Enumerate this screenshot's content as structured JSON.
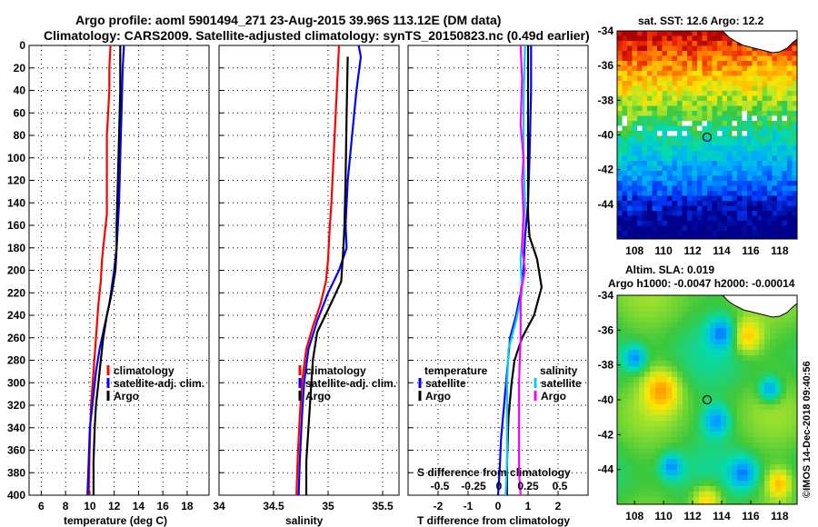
{
  "header": {
    "line1": "Argo profile: aoml 5901494_271 23-Aug-2015 39.96S 113.12E (DM data)",
    "line2": "Climatology: CARS2009. Satellite-adjusted climatology: synTS_20150823.nc (0.49d earlier)"
  },
  "stamp": "©IMOS 14-Dec-2018 09:40:56",
  "chart_data": [
    {
      "type": "line",
      "id": "temp",
      "xlabel": "temperature (deg C)",
      "ylabel": "",
      "xlim": [
        5,
        19.8
      ],
      "ylim": [
        400,
        0
      ],
      "xticks": [
        6,
        8,
        10,
        12,
        14,
        16,
        18
      ],
      "yticks": [
        0,
        20,
        40,
        60,
        80,
        100,
        120,
        140,
        160,
        180,
        200,
        220,
        240,
        260,
        280,
        300,
        320,
        340,
        360,
        380,
        400
      ],
      "legend": [
        "climatology",
        "satellite-adj. clim.",
        "Argo"
      ],
      "legend_position": "lower-right",
      "series": [
        {
          "name": "climatology",
          "color": "#ff0000",
          "points": [
            [
              11.7,
              0
            ],
            [
              11.6,
              20
            ],
            [
              11.6,
              40
            ],
            [
              11.5,
              60
            ],
            [
              11.4,
              80
            ],
            [
              11.4,
              120
            ],
            [
              11.4,
              150
            ],
            [
              11.2,
              170
            ],
            [
              11.0,
              190
            ],
            [
              10.9,
              210
            ],
            [
              10.7,
              230
            ],
            [
              10.5,
              260
            ],
            [
              10.3,
              290
            ],
            [
              10.1,
              320
            ],
            [
              10.0,
              350
            ],
            [
              9.9,
              400
            ]
          ]
        },
        {
          "name": "satellite-adj. clim.",
          "color": "#0000ff",
          "points": [
            [
              12.8,
              0
            ],
            [
              12.7,
              20
            ],
            [
              12.6,
              60
            ],
            [
              12.5,
              100
            ],
            [
              12.4,
              140
            ],
            [
              12.3,
              160
            ],
            [
              12.2,
              180
            ],
            [
              12.0,
              200
            ],
            [
              11.6,
              230
            ],
            [
              11.2,
              250
            ],
            [
              10.8,
              270
            ],
            [
              10.5,
              290
            ],
            [
              10.2,
              320
            ],
            [
              10.0,
              340
            ],
            [
              9.9,
              370
            ],
            [
              9.8,
              400
            ]
          ]
        },
        {
          "name": "Argo",
          "color": "#000000",
          "points": [
            [
              12.5,
              0
            ],
            [
              12.5,
              40
            ],
            [
              12.4,
              80
            ],
            [
              12.3,
              120
            ],
            [
              12.2,
              160
            ],
            [
              12.2,
              180
            ],
            [
              12.1,
              200
            ],
            [
              11.8,
              220
            ],
            [
              11.4,
              240
            ],
            [
              11.1,
              260
            ],
            [
              10.9,
              280
            ],
            [
              10.7,
              300
            ],
            [
              10.5,
              320
            ],
            [
              10.4,
              340
            ],
            [
              10.3,
              370
            ],
            [
              10.3,
              400
            ]
          ]
        }
      ]
    },
    {
      "type": "line",
      "id": "sal",
      "xlabel": "salinity",
      "ylabel": "",
      "xlim": [
        34,
        35.65
      ],
      "ylim": [
        400,
        0
      ],
      "xticks": [
        34,
        34.5,
        35,
        35.5
      ],
      "legend": [
        "climatology",
        "satellite-adj. clim.",
        "Argo"
      ],
      "legend_position": "lower-right",
      "series": [
        {
          "name": "climatology",
          "color": "#ff0000",
          "points": [
            [
              35.1,
              0
            ],
            [
              35.08,
              40
            ],
            [
              35.05,
              100
            ],
            [
              35.03,
              140
            ],
            [
              35.01,
              170
            ],
            [
              35.0,
              190
            ],
            [
              34.98,
              210
            ],
            [
              34.93,
              230
            ],
            [
              34.86,
              250
            ],
            [
              34.8,
              270
            ],
            [
              34.76,
              300
            ],
            [
              34.74,
              330
            ],
            [
              34.72,
              370
            ],
            [
              34.71,
              400
            ]
          ]
        },
        {
          "name": "satellite-adj. clim.",
          "color": "#0000ff",
          "points": [
            [
              35.28,
              0
            ],
            [
              35.3,
              10
            ],
            [
              35.26,
              40
            ],
            [
              35.22,
              80
            ],
            [
              35.18,
              120
            ],
            [
              35.16,
              160
            ],
            [
              35.17,
              180
            ],
            [
              35.1,
              200
            ],
            [
              35.0,
              220
            ],
            [
              34.9,
              245
            ],
            [
              34.82,
              270
            ],
            [
              34.78,
              300
            ],
            [
              34.76,
              330
            ],
            [
              34.74,
              370
            ],
            [
              34.73,
              400
            ]
          ]
        },
        {
          "name": "Argo",
          "color": "#000000",
          "points": [
            [
              35.18,
              10
            ],
            [
              35.17,
              60
            ],
            [
              35.16,
              120
            ],
            [
              35.15,
              160
            ],
            [
              35.14,
              180
            ],
            [
              35.12,
              210
            ],
            [
              35.0,
              235
            ],
            [
              34.9,
              255
            ],
            [
              34.86,
              280
            ],
            [
              34.84,
              310
            ],
            [
              34.82,
              340
            ],
            [
              34.8,
              370
            ],
            [
              34.8,
              400
            ]
          ]
        }
      ]
    },
    {
      "type": "line",
      "id": "diff",
      "xlabel": "T difference from climatology",
      "ylabel": "",
      "xlim": [
        -3,
        3
      ],
      "ylim": [
        400,
        0
      ],
      "xticks": [
        -2,
        -1,
        0,
        1,
        2
      ],
      "top_axis": {
        "label": "S difference from climatology",
        "ticks": [
          "-0.5",
          "-0.25",
          "0",
          "0.25",
          "0.5"
        ]
      },
      "legend": {
        "temperature": {
          "title": "temperature",
          "entries": [
            "satellite",
            "Argo"
          ]
        },
        "salinity": {
          "title": "salinity",
          "entries": [
            "satellite",
            "Argo"
          ]
        }
      },
      "series": [
        {
          "name": "T satellite",
          "color": "#0000ff",
          "points": [
            [
              1.1,
              0
            ],
            [
              1.1,
              40
            ],
            [
              1.05,
              100
            ],
            [
              1.0,
              140
            ],
            [
              0.9,
              170
            ],
            [
              0.85,
              200
            ],
            [
              0.75,
              220
            ],
            [
              0.6,
              240
            ],
            [
              0.4,
              260
            ],
            [
              0.3,
              290
            ],
            [
              0.2,
              320
            ],
            [
              0.1,
              350
            ],
            [
              0.05,
              380
            ],
            [
              0.0,
              400
            ]
          ]
        },
        {
          "name": "T Argo",
          "color": "#000000",
          "points": [
            [
              1.0,
              0
            ],
            [
              1.0,
              40
            ],
            [
              1.0,
              100
            ],
            [
              1.0,
              150
            ],
            [
              1.05,
              170
            ],
            [
              1.3,
              190
            ],
            [
              1.45,
              215
            ],
            [
              1.2,
              240
            ],
            [
              0.8,
              260
            ],
            [
              0.55,
              280
            ],
            [
              0.45,
              300
            ],
            [
              0.35,
              330
            ],
            [
              0.3,
              370
            ],
            [
              0.3,
              400
            ]
          ]
        },
        {
          "name": "S satellite",
          "color": "#00ccff",
          "points": [
            [
              0.9,
              0
            ],
            [
              0.85,
              50
            ],
            [
              0.85,
              100
            ],
            [
              0.9,
              140
            ],
            [
              0.85,
              160
            ],
            [
              0.75,
              190
            ],
            [
              0.8,
              220
            ],
            [
              0.6,
              245
            ],
            [
              0.35,
              270
            ],
            [
              0.3,
              300
            ],
            [
              0.3,
              330
            ],
            [
              0.3,
              370
            ],
            [
              0.25,
              400
            ]
          ]
        },
        {
          "name": "S Argo",
          "color": "#ff00ff",
          "points": [
            [
              0.75,
              0
            ],
            [
              0.8,
              30
            ],
            [
              0.75,
              70
            ],
            [
              0.85,
              100
            ],
            [
              0.8,
              120
            ],
            [
              0.85,
              150
            ],
            [
              0.8,
              180
            ],
            [
              0.9,
              200
            ],
            [
              0.75,
              220
            ],
            [
              0.75,
              260
            ],
            [
              0.7,
              300
            ],
            [
              0.7,
              340
            ],
            [
              0.7,
              380
            ],
            [
              0.75,
              400
            ]
          ]
        }
      ]
    },
    {
      "type": "heatmap",
      "id": "sst",
      "title": "sat. SST: 12.6 Argo: 12.2",
      "xticks": [
        108,
        110,
        112,
        114,
        116,
        118
      ],
      "yticks": [
        -34,
        -36,
        -38,
        -40,
        -42,
        -44
      ],
      "xlim": [
        106.8,
        119.2
      ],
      "ylim": [
        -46,
        -34
      ],
      "marker": {
        "lon": 113.12,
        "lat": -39.96
      }
    },
    {
      "type": "heatmap",
      "id": "sla",
      "title": "Altim. SLA: 0.019",
      "subtitle": "Argo h1000: -0.0047 h2000: -0.00014",
      "xticks": [
        108,
        110,
        112,
        114,
        116,
        118
      ],
      "yticks": [
        -34,
        -36,
        -38,
        -40,
        -42,
        -44
      ],
      "xlim": [
        106.8,
        119.2
      ],
      "ylim": [
        -46,
        -34
      ],
      "marker": {
        "lon": 113.12,
        "lat": -39.96
      }
    }
  ]
}
